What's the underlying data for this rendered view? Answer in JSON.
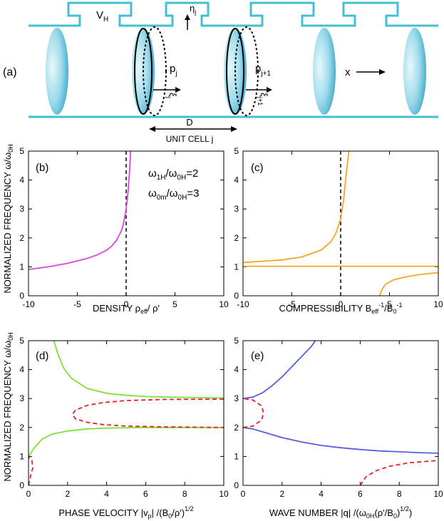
{
  "figure": {
    "panel_labels": {
      "a": "(a)",
      "b": "(b)",
      "c": "(c)",
      "d": "(d)",
      "e": "(e)"
    },
    "colors": {
      "tube": "#43bfd3",
      "membrane_light": "#c6ecf4",
      "membrane_dark": "#3aa9c9",
      "magenta": "#dd44dd",
      "orange": "#f5a623",
      "green": "#7de033",
      "blue": "#5a5de0",
      "red": "#e8202a"
    },
    "schematic": {
      "vh": {
        "main": "V",
        "sub": "H"
      },
      "eta": {
        "main": "η",
        "sub": "j"
      },
      "p1": {
        "main": "p",
        "sub": "j"
      },
      "p2": {
        "main": "p",
        "sub": "j+1"
      },
      "xi1": {
        "main": "ξ",
        "sub": "j"
      },
      "xi2": {
        "main": "ξ",
        "sub": "j+1"
      },
      "x": "x",
      "d": "D",
      "unit_cell": "UNIT CELL j"
    },
    "shared_ylabel": "NORMALIZED FREQUENCY ω/ω",
    "shared_ylabel_sub": "0H",
    "ratio1": {
      "a": "ω",
      "a_sub": "1H",
      "b": "/ω",
      "b_sub": "0H",
      "c": "=2"
    },
    "ratio2": {
      "a": "ω",
      "a_sub": "0m",
      "b": "/ω",
      "b_sub": "0H",
      "c": "=3"
    }
  },
  "chart_data": [
    {
      "panel": "b",
      "type": "line",
      "xlabel": "DENSITY ρ",
      "xlabel_sub": "eff",
      "xlabel_tail": "/ ρ'",
      "xlim": [
        -10,
        10
      ],
      "ylim": [
        0,
        5
      ],
      "xticks": [
        "-10",
        "-5",
        "0",
        "5",
        "10"
      ],
      "yticks": [
        "0",
        "1",
        "2",
        "3",
        "4",
        "5"
      ],
      "series": [
        {
          "name": "density",
          "color": "magenta",
          "points": [
            [
              -10,
              0.91
            ],
            [
              -8,
              1.0
            ],
            [
              -6,
              1.12
            ],
            [
              -4,
              1.29
            ],
            [
              -3,
              1.41
            ],
            [
              -2,
              1.58
            ],
            [
              -1.5,
              1.71
            ],
            [
              -1,
              1.91
            ],
            [
              -0.5,
              2.24
            ],
            [
              -0.3,
              2.45
            ],
            [
              0,
              3.0
            ],
            [
              0.2,
              3.6
            ],
            [
              0.35,
              4.3
            ],
            [
              0.45,
              5.0
            ]
          ]
        }
      ],
      "vline": 0
    },
    {
      "panel": "c",
      "type": "line",
      "xlabel": "COMPRESSIBILITY B",
      "xlabel_sub": "eff",
      "xlabel_sup": "-1",
      "xlabel_mid": "/B",
      "xlabel_sub2": "0",
      "xlabel_sup2": "-1",
      "xlim": [
        -10,
        10
      ],
      "ylim": [
        0,
        5
      ],
      "xticks": [
        "-10",
        "-5",
        "0",
        "5",
        "10"
      ],
      "yticks": [
        "0",
        "1",
        "2",
        "3",
        "4",
        "5"
      ],
      "series": [
        {
          "name": "branch-1",
          "color": "orange",
          "points": [
            [
              -10,
              1.15
            ],
            [
              -6,
              1.24
            ],
            [
              -4,
              1.34
            ],
            [
              -2,
              1.58
            ],
            [
              -1,
              1.87
            ],
            [
              -0.5,
              2.15
            ],
            [
              0,
              2.65
            ],
            [
              0.3,
              3.3
            ],
            [
              0.6,
              4.3
            ],
            [
              0.85,
              5.0
            ]
          ]
        },
        {
          "name": "branch-2",
          "color": "orange",
          "points": [
            [
              -10,
              1.02
            ],
            [
              10,
              1.02
            ]
          ]
        },
        {
          "name": "branch-3",
          "color": "orange",
          "points": [
            [
              4.0,
              0
            ],
            [
              4.2,
              0.2
            ],
            [
              4.6,
              0.4
            ],
            [
              5.4,
              0.55
            ],
            [
              6.5,
              0.64
            ],
            [
              8,
              0.73
            ],
            [
              10,
              0.8
            ]
          ]
        }
      ],
      "vline": 0
    },
    {
      "panel": "d",
      "type": "line",
      "xlabel": "PHASE VELOCITY |v",
      "xlabel_sub": "p",
      "xlabel_mid": "| /(B",
      "xlabel_sub2": "0",
      "xlabel_tail": "/ρ')",
      "xlabel_sup": "1/2",
      "xlim": [
        0,
        10
      ],
      "ylim": [
        0,
        5
      ],
      "xticks": [
        "0",
        "2",
        "4",
        "6",
        "8",
        "10"
      ],
      "yticks": [
        "0",
        "1",
        "2",
        "3",
        "4",
        "5"
      ],
      "series": [
        {
          "name": "upper-green",
          "color": "green",
          "style": "solid",
          "points": [
            [
              1.3,
              5.0
            ],
            [
              1.5,
              4.55
            ],
            [
              1.8,
              4.05
            ],
            [
              2.2,
              3.7
            ],
            [
              3,
              3.35
            ],
            [
              4,
              3.18
            ],
            [
              5,
              3.11
            ],
            [
              6,
              3.07
            ],
            [
              8,
              3.04
            ],
            [
              10,
              3.02
            ]
          ]
        },
        {
          "name": "lower-green",
          "color": "green",
          "style": "solid",
          "points": [
            [
              0,
              1.0
            ],
            [
              0.3,
              1.3
            ],
            [
              0.7,
              1.6
            ],
            [
              1.2,
              1.77
            ],
            [
              2,
              1.88
            ],
            [
              3,
              1.95
            ],
            [
              4,
              1.98
            ],
            [
              6,
              2.0
            ],
            [
              10,
              2.0
            ]
          ]
        },
        {
          "name": "red-loop",
          "color": "red",
          "style": "dashed",
          "points": [
            [
              10,
              2.98
            ],
            [
              7,
              2.97
            ],
            [
              5,
              2.93
            ],
            [
              3.8,
              2.86
            ],
            [
              3,
              2.76
            ],
            [
              2.4,
              2.6
            ],
            [
              2.25,
              2.45
            ],
            [
              2.4,
              2.3
            ],
            [
              3,
              2.18
            ],
            [
              3.8,
              2.1
            ],
            [
              5,
              2.05
            ],
            [
              7,
              2.02
            ],
            [
              10,
              2.0
            ]
          ]
        },
        {
          "name": "red-low",
          "color": "red",
          "style": "dashed",
          "points": [
            [
              0,
              0
            ],
            [
              0.1,
              0.3
            ],
            [
              0.22,
              0.6
            ],
            [
              0.18,
              0.85
            ],
            [
              0,
              1.0
            ]
          ]
        }
      ]
    },
    {
      "panel": "e",
      "type": "line",
      "xlabel": "WAVE NUMBER |q| /(ω",
      "xlabel_sub": "0H",
      "xlabel_mid": "(ρ'/B",
      "xlabel_sub2": "0",
      "xlabel_tail": ")",
      "xlabel_sup": "1/2",
      "xlabel_end": ")",
      "xlim": [
        0,
        10
      ],
      "ylim": [
        0,
        5
      ],
      "xticks": [
        "0",
        "2",
        "4",
        "6",
        "8",
        "10"
      ],
      "yticks": [
        "0",
        "1",
        "2",
        "3",
        "4",
        "5"
      ],
      "series": [
        {
          "name": "upper-blue",
          "color": "blue",
          "style": "solid",
          "points": [
            [
              0,
              3.0
            ],
            [
              0.5,
              3.05
            ],
            [
              1,
              3.2
            ],
            [
              1.5,
              3.45
            ],
            [
              2,
              3.75
            ],
            [
              2.5,
              4.1
            ],
            [
              3,
              4.45
            ],
            [
              3.5,
              4.8
            ],
            [
              3.7,
              5.0
            ]
          ]
        },
        {
          "name": "lower-blue",
          "color": "blue",
          "style": "solid",
          "points": [
            [
              0,
              2.0
            ],
            [
              0.5,
              1.95
            ],
            [
              1,
              1.85
            ],
            [
              2,
              1.65
            ],
            [
              3,
              1.5
            ],
            [
              4,
              1.38
            ],
            [
              5,
              1.3
            ],
            [
              6,
              1.24
            ],
            [
              7,
              1.19
            ],
            [
              8,
              1.16
            ],
            [
              9,
              1.13
            ],
            [
              10,
              1.11
            ]
          ]
        },
        {
          "name": "red-loop",
          "color": "red",
          "style": "dashed",
          "points": [
            [
              0,
              2.0
            ],
            [
              0.5,
              2.05
            ],
            [
              0.95,
              2.25
            ],
            [
              1.05,
              2.5
            ],
            [
              0.95,
              2.75
            ],
            [
              0.5,
              2.95
            ],
            [
              0,
              3.0
            ]
          ]
        },
        {
          "name": "red-high",
          "color": "red",
          "style": "dashed",
          "points": [
            [
              6,
              0
            ],
            [
              6.3,
              0.3
            ],
            [
              6.8,
              0.5
            ],
            [
              7.5,
              0.66
            ],
            [
              8.5,
              0.78
            ],
            [
              10,
              0.86
            ]
          ]
        }
      ]
    }
  ]
}
